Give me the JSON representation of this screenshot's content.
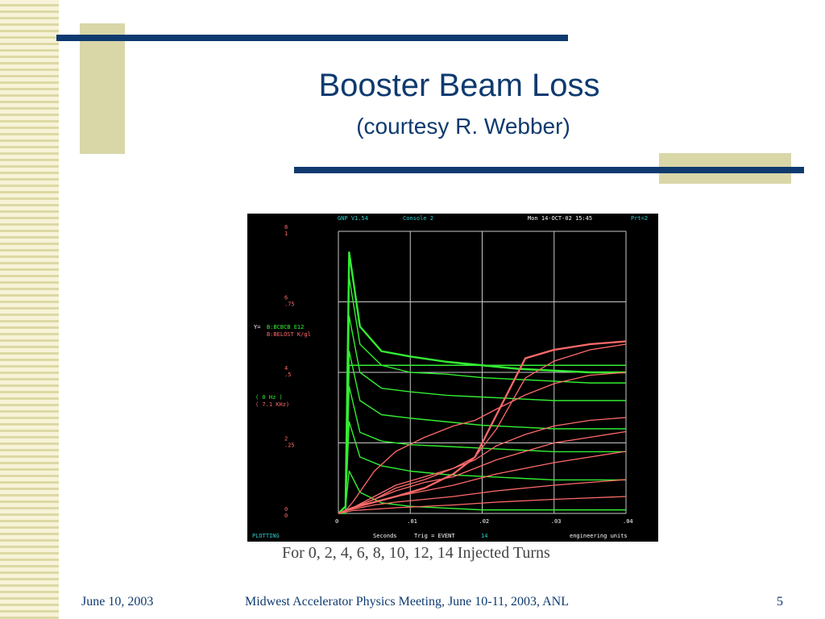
{
  "slide": {
    "title": "Booster Beam Loss",
    "subtitle": "(courtesy R. Webber)",
    "caption": "For 0, 2, 4, 6, 8, 10, 12, 14 Injected Turns",
    "footer": {
      "date": "June 10, 2003",
      "meeting": "Midwest Accelerator Physics Meeting, June 10-11, 2003, ANL",
      "page": "5"
    }
  },
  "colors": {
    "title": "#0e3a6f",
    "accent_rule": "#0e3a6f",
    "tan": "#d9d7a8",
    "plot_bg": "#000000",
    "green_trace": "#33ee33",
    "red_trace": "#ff6a6a",
    "grid": "#c8c8c8",
    "cyan_text": "#33cccc"
  },
  "screen": {
    "header_left": "GNP V1.54",
    "header_console": "Console  2",
    "header_date": "Mon  14-OCT-02 15:45",
    "header_right": "Prt=2",
    "y_def_label": "Y=",
    "y_def_green": "B:BCBCB  E12",
    "y_def_red": "B:BELOST K/gl",
    "freq_1": "( 0  Hz )",
    "freq_2": "( 7.1 KHz)",
    "status": "PLOTTING",
    "bottom_seconds": "Seconds",
    "bottom_trig": "Trig = EVENT",
    "bottom_event": "14",
    "bottom_units": "engineering units"
  },
  "chart_data": {
    "type": "line",
    "xlabel": "Seconds",
    "xlim": [
      0,
      0.04
    ],
    "x_ticks": [
      "0",
      ".01",
      ".02",
      ".03",
      ".04"
    ],
    "y_axes": [
      {
        "name": "B:BCBCB E12",
        "ticks": [
          "0",
          "2",
          "4",
          "6",
          "8"
        ],
        "ylim": [
          0,
          8
        ]
      },
      {
        "name": "B:BELOST K/gl",
        "ticks": [
          "0",
          ".25",
          ".5",
          ".75",
          "1"
        ],
        "ylim": [
          0,
          1
        ]
      }
    ],
    "series_groups": [
      {
        "name": "B:BCBCB E12",
        "color": "#33ee33",
        "x": [
          0,
          0.001,
          0.0015,
          0.003,
          0.006,
          0.01,
          0.015,
          0.02,
          0.025,
          0.03,
          0.035,
          0.04
        ],
        "traces": [
          [
            0,
            0,
            4.2,
            4.2,
            4.2,
            4.2,
            4.2,
            4.2,
            4.2,
            4.2,
            4.2,
            4.2
          ],
          [
            0,
            0.2,
            7.4,
            5.3,
            4.6,
            4.45,
            4.3,
            4.2,
            4.1,
            4.05,
            4.0,
            4.0
          ],
          [
            0,
            0.2,
            6.7,
            4.8,
            4.2,
            4.0,
            3.95,
            3.85,
            3.8,
            3.75,
            3.7,
            3.7
          ],
          [
            0,
            0.2,
            5.6,
            4.0,
            3.55,
            3.45,
            3.35,
            3.3,
            3.25,
            3.2,
            3.2,
            3.2
          ],
          [
            0,
            0.2,
            4.6,
            3.2,
            2.8,
            2.7,
            2.6,
            2.5,
            2.45,
            2.4,
            2.4,
            2.4
          ],
          [
            0,
            0.2,
            3.6,
            2.3,
            2.05,
            1.95,
            1.9,
            1.85,
            1.8,
            1.75,
            1.75,
            1.75
          ],
          [
            0,
            0.2,
            2.6,
            1.6,
            1.35,
            1.2,
            1.1,
            1.05,
            1.0,
            0.95,
            0.95,
            0.95
          ],
          [
            0,
            0.2,
            1.2,
            0.6,
            0.3,
            0.2,
            0.15,
            0.1,
            0.1,
            0.1,
            0.1,
            0.1
          ]
        ]
      },
      {
        "name": "B:BELOST K/gl",
        "color": "#ff6a6a",
        "x": [
          0,
          0.001,
          0.002,
          0.005,
          0.008,
          0.012,
          0.016,
          0.019,
          0.022,
          0.026,
          0.03,
          0.035,
          0.04
        ],
        "traces": [
          [
            0,
            0.01,
            0.02,
            0.05,
            0.09,
            0.12,
            0.16,
            0.2,
            0.3,
            0.48,
            0.54,
            0.58,
            0.6
          ],
          [
            0,
            0.01,
            0.02,
            0.04,
            0.06,
            0.09,
            0.14,
            0.2,
            0.35,
            0.55,
            0.58,
            0.6,
            0.61
          ],
          [
            0,
            0.01,
            0.04,
            0.15,
            0.22,
            0.27,
            0.31,
            0.33,
            0.37,
            0.42,
            0.46,
            0.49,
            0.5
          ],
          [
            0,
            0.01,
            0.02,
            0.06,
            0.1,
            0.13,
            0.16,
            0.19,
            0.24,
            0.28,
            0.31,
            0.33,
            0.34
          ],
          [
            0,
            0.01,
            0.02,
            0.05,
            0.08,
            0.11,
            0.13,
            0.16,
            0.19,
            0.22,
            0.25,
            0.27,
            0.29
          ],
          [
            0,
            0.01,
            0.02,
            0.04,
            0.06,
            0.08,
            0.1,
            0.12,
            0.14,
            0.16,
            0.18,
            0.2,
            0.22
          ],
          [
            0,
            0.01,
            0.015,
            0.03,
            0.04,
            0.05,
            0.06,
            0.07,
            0.08,
            0.09,
            0.1,
            0.11,
            0.12
          ],
          [
            0,
            0.005,
            0.01,
            0.015,
            0.02,
            0.025,
            0.03,
            0.035,
            0.04,
            0.045,
            0.05,
            0.055,
            0.06
          ]
        ]
      }
    ]
  }
}
